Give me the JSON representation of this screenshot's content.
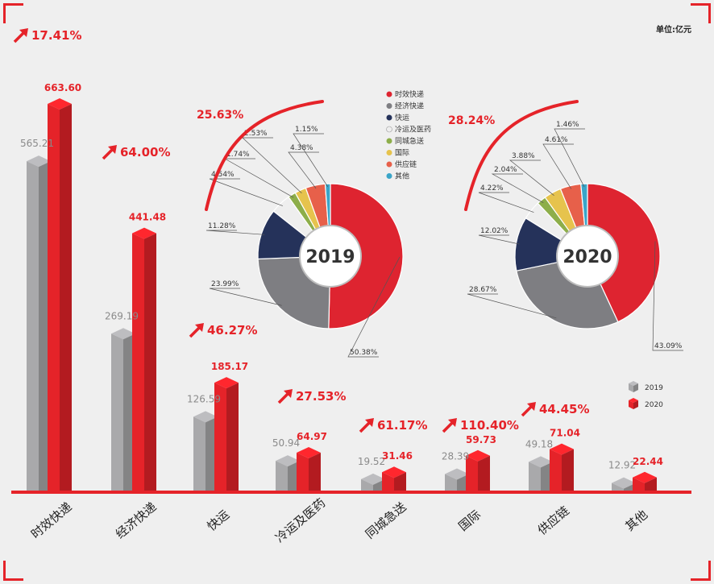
{
  "unit": "单位:亿元",
  "colors": {
    "accent": "#e52329",
    "bar2019": "#a9a9ab",
    "bar2020": "#e52329"
  },
  "chart_data": [
    {
      "type": "bar",
      "categories": [
        "时效快递",
        "经济快递",
        "快运",
        "冷运及医药",
        "同城急送",
        "国际",
        "供应链",
        "其他"
      ],
      "series": [
        {
          "name": "2019",
          "values": [
            565.21,
            269.19,
            126.59,
            50.94,
            19.52,
            28.39,
            49.18,
            12.92
          ],
          "labels": [
            "565.21",
            "269.19",
            "126.59",
            "50.94",
            "19.52",
            "28.39",
            "49.18",
            "12.92"
          ]
        },
        {
          "name": "2020",
          "values": [
            663.6,
            441.48,
            185.17,
            64.97,
            31.46,
            59.73,
            71.04,
            22.44
          ],
          "labels": [
            "663.60",
            "441.48",
            "185.17",
            "64.97",
            "31.46",
            "59.73",
            "71.04",
            "22.44"
          ]
        }
      ],
      "growth": [
        "17.41%",
        "64.00%",
        "46.27%",
        "27.53%",
        "61.17%",
        "110.40%",
        "44.45%"
      ],
      "legend": [
        "2019",
        "2020"
      ]
    },
    {
      "type": "pie",
      "year": "2019",
      "growth": "25.63%",
      "labels": [
        "时效快递",
        "经济快递",
        "快运",
        "冷运及医药",
        "同城急送",
        "国际",
        "供应链",
        "其他"
      ],
      "values": [
        50.38,
        23.99,
        11.28,
        4.54,
        1.74,
        2.53,
        4.38,
        1.15
      ],
      "value_labels": [
        "50.38%",
        "23.99%",
        "11.28%",
        "4.54%",
        "1.74%",
        "2.53%",
        "4.38%",
        "1.15%"
      ]
    },
    {
      "type": "pie",
      "year": "2020",
      "growth": "28.24%",
      "labels": [
        "时效快递",
        "经济快递",
        "快运",
        "冷运及医药",
        "同城急送",
        "国际",
        "供应链",
        "其他"
      ],
      "values": [
        43.09,
        28.67,
        12.02,
        4.22,
        2.04,
        3.88,
        4.61,
        1.46
      ],
      "value_labels": [
        "43.09%",
        "28.67%",
        "12.02%",
        "4.22%",
        "2.04%",
        "3.88%",
        "4.61%",
        "1.46%"
      ]
    }
  ],
  "pie_legend": [
    "时效快递",
    "经济快递",
    "快运",
    "冷运及医药",
    "同城急送",
    "国际",
    "供应链",
    "其他"
  ],
  "pie_colors": [
    "#de2430",
    "#7e7e82",
    "#25325a",
    "#eeeeee",
    "#8dae4a",
    "#e6c34d",
    "#e7604a",
    "#3aa5c8"
  ]
}
